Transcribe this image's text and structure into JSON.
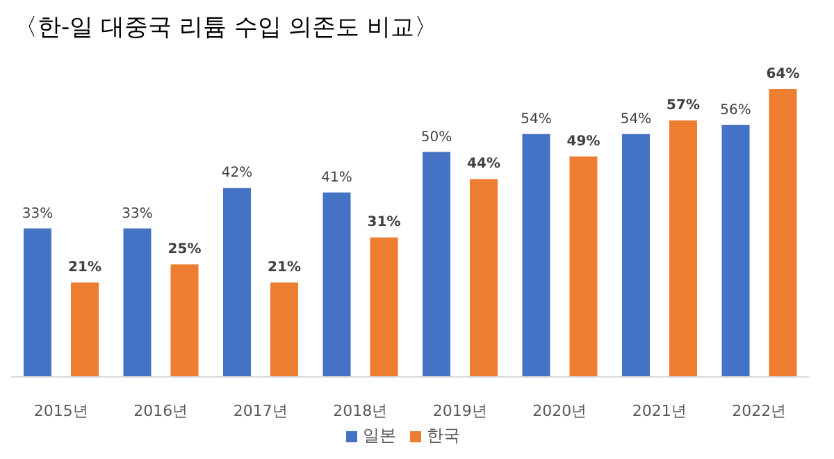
{
  "chart_data": {
    "type": "bar",
    "title": "〈한-일 대중국 리튬 수입 의존도 비교〉",
    "categories": [
      "2015년",
      "2016년",
      "2017년",
      "2018년",
      "2019년",
      "2020년",
      "2021년",
      "2022년"
    ],
    "series": [
      {
        "name": "일본",
        "color": "#4472c4",
        "values": [
          33,
          33,
          42,
          41,
          50,
          54,
          54,
          56
        ],
        "value_labels": [
          "33%",
          "33%",
          "42%",
          "41%",
          "50%",
          "54%",
          "54%",
          "56%"
        ]
      },
      {
        "name": "한국",
        "color": "#ed7d31",
        "values": [
          21,
          25,
          21,
          31,
          44,
          49,
          57,
          64
        ],
        "value_labels": [
          "21%",
          "25%",
          "21%",
          "31%",
          "44%",
          "49%",
          "57%",
          "64%"
        ]
      }
    ],
    "legend": "bottom",
    "grid": false
  }
}
